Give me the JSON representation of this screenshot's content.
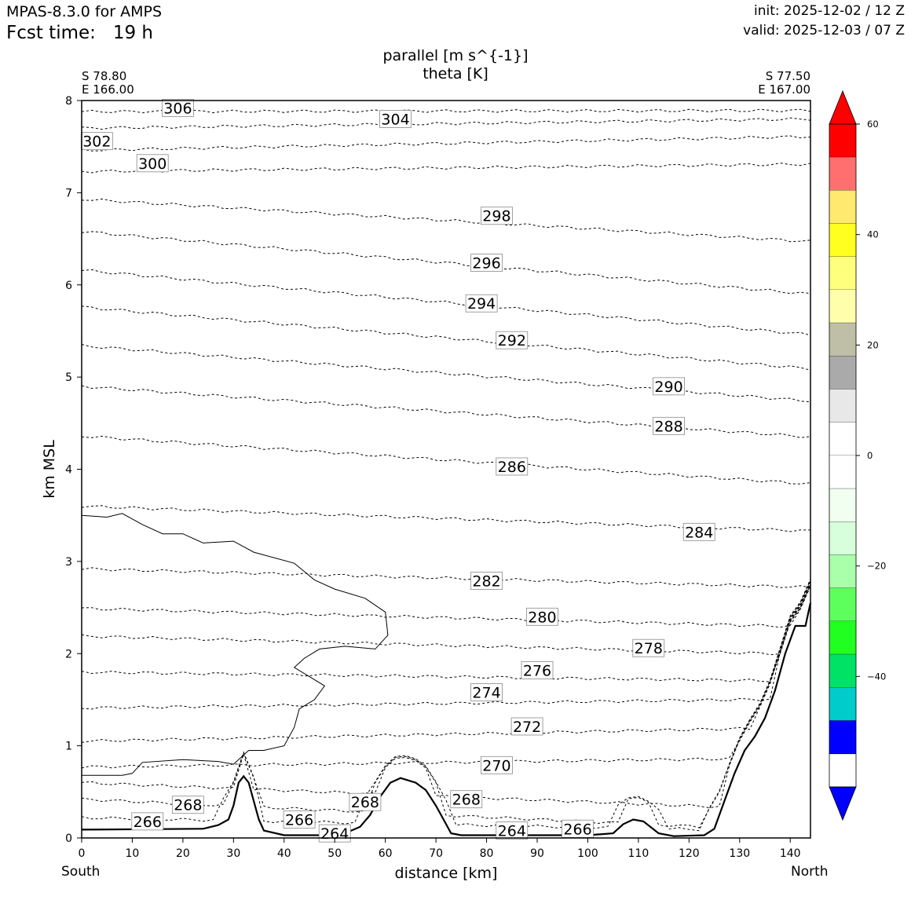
{
  "header": {
    "model": "MPAS-8.3.0 for AMPS",
    "fcst_label": "Fcst time:",
    "fcst_value": "19 h",
    "init": "init: 2025-12-02 / 12 Z",
    "valid": "valid: 2025-12-03 / 07 Z"
  },
  "chart_data": {
    "type": "cross-section",
    "title": [
      "parallel [m s^{-1}]",
      "theta [K]"
    ],
    "xlabel": "distance [km]",
    "ylabel": "km MSL",
    "xlim": [
      0,
      144
    ],
    "ylim": [
      0,
      8
    ],
    "xticks": [
      0,
      10,
      20,
      30,
      40,
      50,
      60,
      70,
      80,
      90,
      100,
      110,
      120,
      130,
      140
    ],
    "yticks": [
      0,
      1,
      2,
      3,
      4,
      5,
      6,
      7,
      8
    ],
    "start_point": {
      "lat": "S 78.80",
      "lon": "E 166.00",
      "label": "South"
    },
    "end_point": {
      "lat": "S 77.50",
      "lon": "E 167.00",
      "label": "North"
    },
    "terrain": [
      [
        0,
        0.09
      ],
      [
        24,
        0.1
      ],
      [
        27,
        0.14
      ],
      [
        29,
        0.2
      ],
      [
        30,
        0.35
      ],
      [
        31,
        0.6
      ],
      [
        32,
        0.67
      ],
      [
        33,
        0.6
      ],
      [
        34,
        0.4
      ],
      [
        35,
        0.2
      ],
      [
        36,
        0.08
      ],
      [
        40,
        0.03
      ],
      [
        47,
        0.03
      ],
      [
        52,
        0.05
      ],
      [
        55,
        0.12
      ],
      [
        57,
        0.25
      ],
      [
        59,
        0.45
      ],
      [
        61,
        0.6
      ],
      [
        63,
        0.65
      ],
      [
        66,
        0.6
      ],
      [
        68,
        0.52
      ],
      [
        70,
        0.35
      ],
      [
        72,
        0.15
      ],
      [
        73,
        0.05
      ],
      [
        75,
        0.03
      ],
      [
        100,
        0.03
      ],
      [
        105,
        0.05
      ],
      [
        107,
        0.15
      ],
      [
        109,
        0.2
      ],
      [
        111,
        0.18
      ],
      [
        114,
        0.05
      ],
      [
        117,
        0.02
      ],
      [
        123,
        0.03
      ],
      [
        125,
        0.1
      ],
      [
        127,
        0.4
      ],
      [
        129,
        0.7
      ],
      [
        131,
        0.95
      ],
      [
        133,
        1.1
      ],
      [
        135,
        1.3
      ],
      [
        137,
        1.6
      ],
      [
        139,
        2.0
      ],
      [
        141,
        2.3
      ],
      [
        143,
        2.3
      ],
      [
        144,
        2.55
      ]
    ],
    "theta_labels": [
      {
        "value": "306",
        "x": 19,
        "y": 7.92
      },
      {
        "value": "304",
        "x": 62,
        "y": 7.8
      },
      {
        "value": "302",
        "x": 3,
        "y": 7.56
      },
      {
        "value": "300",
        "x": 14,
        "y": 7.32
      },
      {
        "value": "298",
        "x": 82,
        "y": 6.75
      },
      {
        "value": "296",
        "x": 80,
        "y": 6.24
      },
      {
        "value": "294",
        "x": 79,
        "y": 5.8
      },
      {
        "value": "292",
        "x": 85,
        "y": 5.4
      },
      {
        "value": "290",
        "x": 116,
        "y": 4.9
      },
      {
        "value": "288",
        "x": 116,
        "y": 4.47
      },
      {
        "value": "286",
        "x": 85,
        "y": 4.03
      },
      {
        "value": "284",
        "x": 122,
        "y": 3.32
      },
      {
        "value": "282",
        "x": 80,
        "y": 2.79
      },
      {
        "value": "280",
        "x": 91,
        "y": 2.4
      },
      {
        "value": "278",
        "x": 112,
        "y": 2.06
      },
      {
        "value": "276",
        "x": 90,
        "y": 1.82
      },
      {
        "value": "274",
        "x": 80,
        "y": 1.58
      },
      {
        "value": "272",
        "x": 88,
        "y": 1.21
      },
      {
        "value": "270",
        "x": 82,
        "y": 0.79
      },
      {
        "value": "268",
        "x": 21,
        "y": 0.36
      },
      {
        "value": "268",
        "x": 56,
        "y": 0.39
      },
      {
        "value": "268",
        "x": 76,
        "y": 0.42
      },
      {
        "value": "266",
        "x": 13,
        "y": 0.18
      },
      {
        "value": "266",
        "x": 43,
        "y": 0.2
      },
      {
        "value": "266",
        "x": 98,
        "y": 0.1
      },
      {
        "value": "264",
        "x": 50,
        "y": 0.05
      },
      {
        "value": "264",
        "x": 85,
        "y": 0.08
      }
    ],
    "theta_lines": [
      {
        "base": 7.88,
        "slope": 0.012
      },
      {
        "base": 7.7,
        "slope": 0.1
      },
      {
        "base": 7.46,
        "slope": 0.15
      },
      {
        "base": 7.23,
        "slope": 0.08
      },
      {
        "base": 6.93,
        "slope": -0.46
      },
      {
        "base": 6.58,
        "slope": -0.68
      },
      {
        "base": 6.16,
        "slope": -0.7
      },
      {
        "base": 5.76,
        "slope": -0.67
      },
      {
        "base": 5.34,
        "slope": -0.6
      },
      {
        "base": 4.9,
        "slope": -0.55
      },
      {
        "base": 4.36,
        "slope": -0.52
      },
      {
        "base": 3.6,
        "slope": -0.27
      },
      {
        "base": 2.92,
        "slope": -0.2
      },
      {
        "base": 2.49,
        "slope": -0.2
      },
      {
        "base": 2.19,
        "slope": -0.2
      },
      {
        "base": 1.8,
        "slope": -0.1
      },
      {
        "base": 1.41,
        "slope": 0.1
      },
      {
        "base": 1.05,
        "slope": 0.15
      },
      {
        "base": 0.77,
        "slope": 0.1
      },
      {
        "base": 0.6,
        "slope": -0.3
      },
      {
        "base": 0.42,
        "slope": -0.35
      },
      {
        "base": 0.22,
        "slope": -0.15
      }
    ],
    "wind_zero_contour": [
      [
        0,
        3.5
      ],
      [
        5,
        3.48
      ],
      [
        8,
        3.52
      ],
      [
        12,
        3.4
      ],
      [
        16,
        3.3
      ],
      [
        20,
        3.3
      ],
      [
        24,
        3.2
      ],
      [
        30,
        3.22
      ],
      [
        34,
        3.1
      ],
      [
        42,
        2.98
      ],
      [
        46,
        2.8
      ],
      [
        50,
        2.7
      ],
      [
        56,
        2.6
      ],
      [
        60,
        2.45
      ],
      [
        60.5,
        2.2
      ],
      [
        58,
        2.05
      ],
      [
        52,
        2.08
      ],
      [
        47,
        2.05
      ],
      [
        44,
        1.95
      ],
      [
        42,
        1.85
      ],
      [
        45,
        1.75
      ],
      [
        48,
        1.65
      ],
      [
        46,
        1.5
      ],
      [
        43,
        1.4
      ],
      [
        42,
        1.2
      ],
      [
        40,
        1.0
      ],
      [
        36,
        0.95
      ],
      [
        33,
        0.95
      ],
      [
        30,
        0.8
      ],
      [
        27,
        0.83
      ],
      [
        20,
        0.85
      ],
      [
        12,
        0.82
      ],
      [
        10,
        0.7
      ],
      [
        8,
        0.68
      ],
      [
        0,
        0.68
      ]
    ],
    "colorbar": {
      "ticks": [
        60,
        40,
        20,
        0,
        -20,
        -40
      ],
      "min": -60,
      "max": 60,
      "levels": [
        {
          "from": 54,
          "to": 60,
          "color": "#ff0000"
        },
        {
          "from": 48,
          "to": 54,
          "color": "#ff6f6f"
        },
        {
          "from": 42,
          "to": 48,
          "color": "#ffe96f"
        },
        {
          "from": 36,
          "to": 42,
          "color": "#ffff20"
        },
        {
          "from": 30,
          "to": 36,
          "color": "#ffff7e"
        },
        {
          "from": 24,
          "to": 30,
          "color": "#ffffab"
        },
        {
          "from": 18,
          "to": 24,
          "color": "#bfbfa7"
        },
        {
          "from": 12,
          "to": 18,
          "color": "#aaaaaa"
        },
        {
          "from": 6,
          "to": 12,
          "color": "#e8e8e8"
        },
        {
          "from": 0,
          "to": 6,
          "color": "#ffffff"
        },
        {
          "from": -6,
          "to": 0,
          "color": "#ffffff"
        },
        {
          "from": -12,
          "to": -6,
          "color": "#f0fff0"
        },
        {
          "from": -18,
          "to": -12,
          "color": "#d7ffdb"
        },
        {
          "from": -24,
          "to": -18,
          "color": "#aaffaa"
        },
        {
          "from": -30,
          "to": -24,
          "color": "#5dff5d"
        },
        {
          "from": -36,
          "to": -30,
          "color": "#20ff20"
        },
        {
          "from": -42,
          "to": -36,
          "color": "#00e266"
        },
        {
          "from": -48,
          "to": -42,
          "color": "#00cccc"
        },
        {
          "from": -54,
          "to": -48,
          "color": "#0000ff"
        }
      ],
      "over_color": "#ff0000",
      "under_color": "#0000ff"
    }
  }
}
